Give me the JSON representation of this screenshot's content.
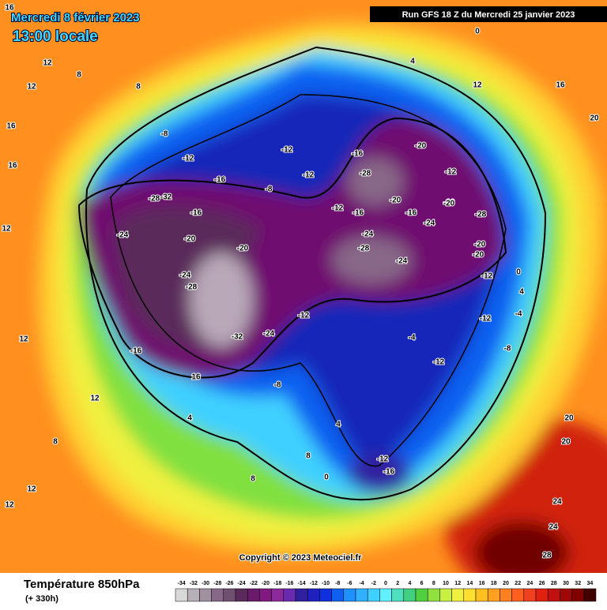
{
  "header": {
    "title": "Mercredi 8 février 2023",
    "subtitle": "13:00 locale",
    "run": "Run GFS 18 Z du Mercredi 25 janvier 2023",
    "copyright": "Copyright © 2023 Meteociel.fr"
  },
  "legend": {
    "title": "Température 850hPa",
    "lead": "(+ 330h)",
    "ticks": [
      -34,
      -32,
      -30,
      -28,
      -26,
      -24,
      -22,
      -20,
      -18,
      -16,
      -14,
      -12,
      -10,
      -8,
      -6,
      -4,
      -2,
      0,
      2,
      4,
      6,
      8,
      10,
      12,
      14,
      16,
      18,
      20,
      22,
      24,
      26,
      28,
      30,
      32,
      34
    ],
    "colors": [
      "#d8d8d8",
      "#b8b0b8",
      "#a090a0",
      "#886888",
      "#705070",
      "#5a2a5a",
      "#6a1a6a",
      "#801a80",
      "#8c2a9c",
      "#6a2ab0",
      "#3020a0",
      "#2020c0",
      "#1030e0",
      "#1060f0",
      "#2090ff",
      "#30b0ff",
      "#40d0ff",
      "#60f0ff",
      "#50e0c0",
      "#40d080",
      "#50d040",
      "#90e040",
      "#c8f040",
      "#f0f040",
      "#ffe030",
      "#ffc020",
      "#ffa020",
      "#ff8020",
      "#ff6020",
      "#f04020",
      "#e02010",
      "#c01010",
      "#a00808",
      "#800000",
      "#400000"
    ]
  },
  "map": {
    "labels": [
      16,
      12,
      8,
      8,
      12,
      16,
      16,
      12,
      12,
      -8,
      -12,
      -16,
      -12,
      -8,
      -12,
      -16,
      -20,
      -24,
      -28,
      -32,
      -20,
      -24,
      -16,
      -12,
      -8,
      -12,
      -16,
      -20,
      -24,
      -28,
      -28,
      -24,
      -16,
      -20,
      -12,
      -16,
      -20,
      -28,
      -24,
      -20,
      -20,
      -12,
      -12,
      -8,
      -4,
      0,
      4,
      12,
      16,
      20,
      20,
      24,
      28,
      -12,
      -16,
      0,
      4,
      8,
      12,
      12,
      16,
      20,
      24,
      0,
      4,
      8,
      12,
      8,
      4,
      -4,
      -12,
      -28,
      -32,
      -24,
      -16
    ]
  }
}
